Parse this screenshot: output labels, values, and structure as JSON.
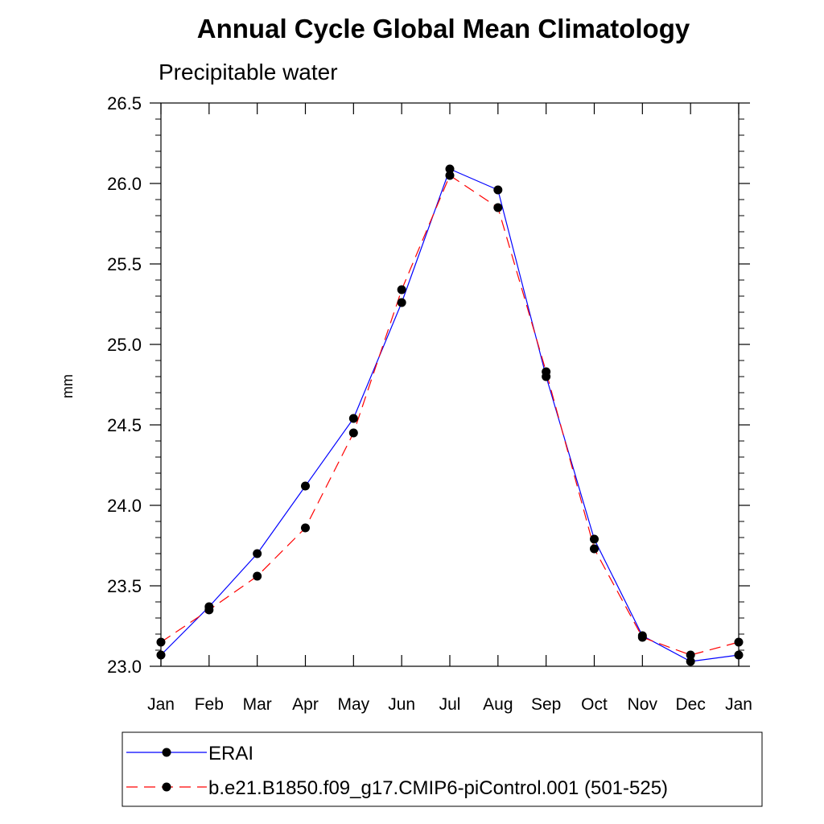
{
  "chart_data": {
    "type": "line",
    "title": "Annual Cycle Global Mean Climatology",
    "subtitle": "Precipitable water",
    "xlabel": "",
    "ylabel": "mm",
    "categories": [
      "Jan",
      "Feb",
      "Mar",
      "Apr",
      "May",
      "Jun",
      "Jul",
      "Aug",
      "Sep",
      "Oct",
      "Nov",
      "Dec",
      "Jan"
    ],
    "ylim": [
      23.0,
      26.5
    ],
    "yticks": [
      "23.0",
      "23.5",
      "24.0",
      "24.5",
      "25.0",
      "25.5",
      "26.0",
      "26.5"
    ],
    "grid": false,
    "legend_position": "bottom",
    "series": [
      {
        "name": "ERAI",
        "color": "#0000ff",
        "line_style": "solid",
        "marker": "filled-circle",
        "values": [
          23.07,
          23.37,
          23.7,
          24.12,
          24.54,
          25.26,
          26.09,
          25.96,
          24.8,
          23.79,
          23.19,
          23.03,
          23.07
        ]
      },
      {
        "name": "b.e21.B1850.f09_g17.CMIP6-piControl.001 (501-525)",
        "color": "#ff0000",
        "line_style": "dashed",
        "marker": "filled-circle",
        "values": [
          23.15,
          23.35,
          23.56,
          23.86,
          24.45,
          25.34,
          26.05,
          25.85,
          24.83,
          23.73,
          23.18,
          23.07,
          23.15
        ]
      }
    ]
  }
}
